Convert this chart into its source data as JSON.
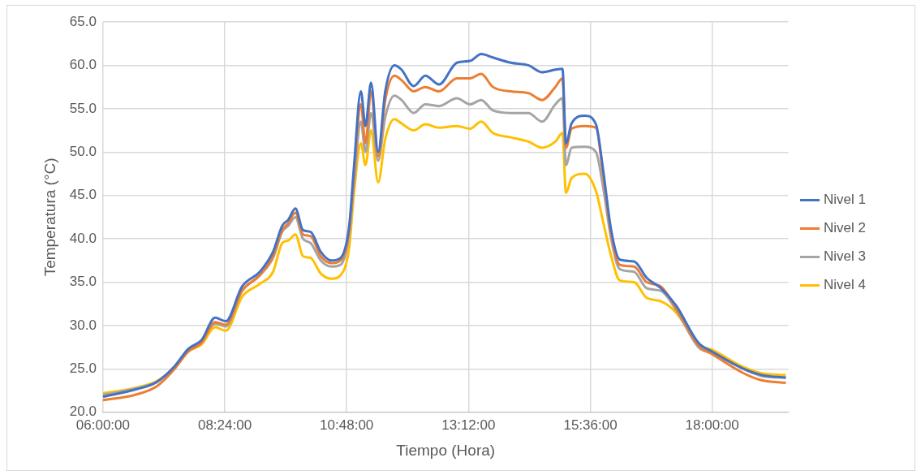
{
  "chart_data": {
    "type": "line",
    "xlabel": "Tiempo (Hora)",
    "ylabel": "Temperatura (°C)",
    "x": [
      6.0,
      6.62,
      7.06,
      7.41,
      7.68,
      7.94,
      8.21,
      8.42,
      8.74,
      9.09,
      9.35,
      9.53,
      9.65,
      9.79,
      9.94,
      10.09,
      10.29,
      10.5,
      10.68,
      10.85,
      10.94,
      11.08,
      11.17,
      11.28,
      11.42,
      11.56,
      11.74,
      11.88,
      12.12,
      12.35,
      12.62,
      12.97,
      13.23,
      13.45,
      13.68,
      14.03,
      14.38,
      14.65,
      14.91,
      15.05,
      15.12,
      15.23,
      15.49,
      15.71,
      15.85,
      16.01,
      16.18,
      16.46,
      16.71,
      16.99,
      17.29,
      17.73,
      18.0,
      18.62,
      18.97,
      19.45
    ],
    "series": [
      {
        "name": "Nivel 1",
        "color": "#4472c4",
        "values": [
          21.8,
          22.6,
          23.5,
          25.3,
          27.3,
          28.3,
          30.9,
          30.5,
          34.5,
          36.2,
          38.5,
          41.5,
          42.2,
          43.5,
          41.0,
          40.8,
          38.5,
          37.5,
          37.8,
          41.5,
          48,
          57,
          53,
          58,
          50,
          57,
          60,
          59.5,
          57.6,
          58.8,
          57.8,
          60.3,
          60.5,
          61.3,
          60.9,
          60.3,
          60.0,
          59.2,
          59.5,
          59.6,
          51,
          53.3,
          54.2,
          53.2,
          48,
          41,
          37.6,
          37.4,
          35.5,
          34.3,
          32.3,
          28.0,
          27.0,
          25.0,
          24.3,
          24.0
        ]
      },
      {
        "name": "Nivel 2",
        "color": "#ed7d31",
        "values": [
          21.4,
          22.0,
          23.0,
          25.0,
          27.0,
          28.0,
          30.4,
          30.1,
          34.0,
          35.8,
          38.0,
          41.0,
          41.8,
          43.0,
          40.5,
          40.3,
          38.0,
          37.2,
          37.5,
          41.0,
          47,
          55.5,
          51,
          57,
          49.5,
          56,
          58.8,
          58.3,
          57.0,
          57.5,
          57.0,
          58.5,
          58.5,
          59.0,
          57.5,
          57.0,
          56.8,
          56.0,
          57.5,
          58.5,
          50.5,
          52.7,
          53.0,
          52.8,
          47.5,
          40.5,
          37.0,
          36.8,
          35.0,
          34.5,
          32.0,
          27.7,
          26.7,
          24.5,
          23.7,
          23.4
        ]
      },
      {
        "name": "Nivel 3",
        "color": "#a5a5a5",
        "values": [
          22.0,
          22.7,
          23.5,
          25.3,
          27.3,
          28.3,
          30.2,
          29.9,
          34.0,
          35.8,
          37.8,
          40.8,
          41.5,
          42.5,
          40.0,
          39.5,
          37.5,
          36.8,
          37.0,
          40.5,
          46,
          53.5,
          50,
          54.5,
          49,
          54,
          56.5,
          56.0,
          54.5,
          55.5,
          55.3,
          56.2,
          55.5,
          56.0,
          54.8,
          54.5,
          54.5,
          53.5,
          55.5,
          56.2,
          48.5,
          50.5,
          50.6,
          50.0,
          46,
          40,
          36.5,
          36.2,
          34.3,
          34.0,
          31.8,
          27.5,
          26.8,
          25.0,
          24.2,
          24.0
        ]
      },
      {
        "name": "Nivel 4",
        "color": "#ffc000",
        "values": [
          22.2,
          22.8,
          23.6,
          25.2,
          27.0,
          27.8,
          29.8,
          29.4,
          33.3,
          34.8,
          36.2,
          39.5,
          39.8,
          40.5,
          38.0,
          37.8,
          36.0,
          35.4,
          35.8,
          39.0,
          45,
          51,
          48.5,
          52.5,
          46.5,
          51.5,
          53.8,
          53.3,
          52.5,
          53.2,
          52.8,
          53.0,
          52.7,
          53.5,
          52.2,
          51.7,
          51.2,
          50.5,
          51.2,
          52.2,
          45.3,
          47,
          47.5,
          45.5,
          42,
          38,
          35.2,
          35.0,
          33.2,
          32.8,
          31.5,
          27.8,
          27.2,
          25.2,
          24.5,
          24.3
        ]
      }
    ],
    "xlim": [
      6,
      19.5
    ],
    "xticks": [
      {
        "value": 6,
        "label": "06:00:00"
      },
      {
        "value": 8.4,
        "label": "08:24:00"
      },
      {
        "value": 10.8,
        "label": "10:48:00"
      },
      {
        "value": 13.2,
        "label": "13:12:00"
      },
      {
        "value": 15.6,
        "label": "15:36:00"
      },
      {
        "value": 18,
        "label": "18:00:00"
      }
    ],
    "ylim": [
      20,
      65
    ],
    "yticks": [
      {
        "value": 20,
        "label": "20.0"
      },
      {
        "value": 25,
        "label": "25.0"
      },
      {
        "value": 30,
        "label": "30.0"
      },
      {
        "value": 35,
        "label": "35.0"
      },
      {
        "value": 40,
        "label": "40.0"
      },
      {
        "value": 45,
        "label": "45.0"
      },
      {
        "value": 50,
        "label": "50.0"
      },
      {
        "value": 55,
        "label": "55.0"
      },
      {
        "value": 60,
        "label": "60.0"
      },
      {
        "value": 65,
        "label": "65.0"
      }
    ],
    "grid": true,
    "legend": "right",
    "marker": "none",
    "line_style": "solid"
  }
}
